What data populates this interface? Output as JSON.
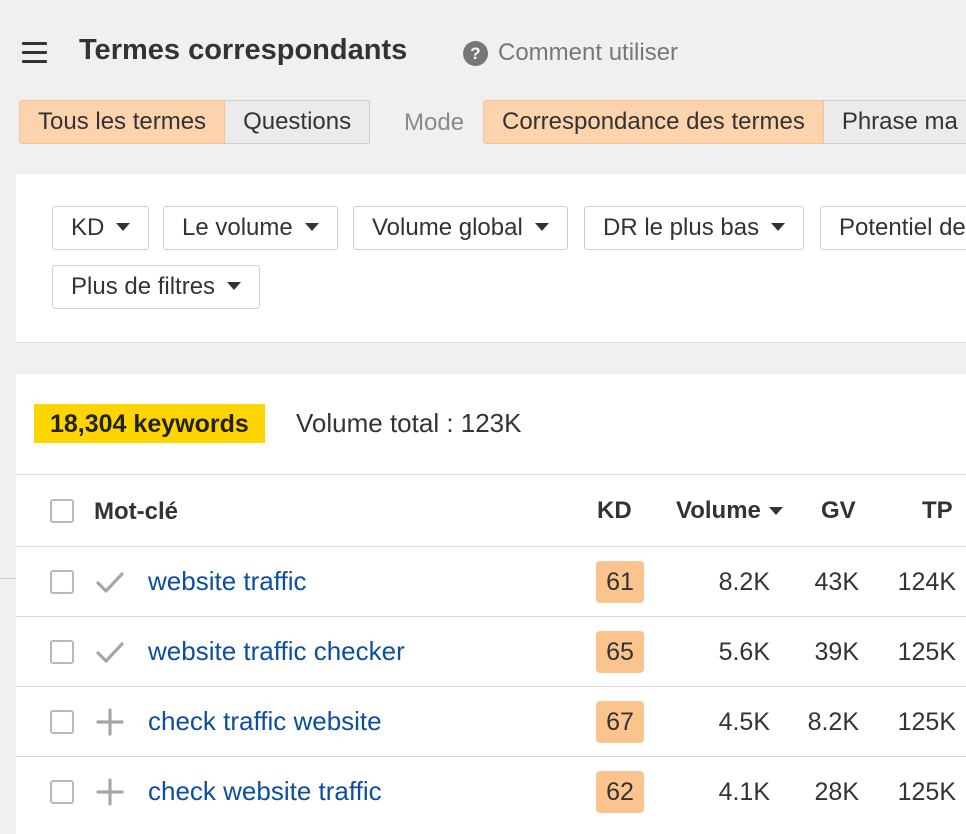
{
  "header": {
    "title": "Termes correspondants",
    "help_icon": "?",
    "help_label": "Comment utiliser"
  },
  "tabs": [
    {
      "label": "Tous les termes",
      "active": true
    },
    {
      "label": "Questions",
      "active": false
    }
  ],
  "mode": {
    "label": "Mode",
    "options": [
      {
        "label": "Correspondance des termes",
        "active": true
      },
      {
        "label": "Phrase ma",
        "active": false
      }
    ]
  },
  "filters": {
    "items": [
      "KD",
      "Le volume",
      "Volume global",
      "DR le plus bas",
      "Potentiel de"
    ],
    "more": "Plus de filtres"
  },
  "results": {
    "count_label": "18,304 keywords",
    "total_label": "Volume total : 123K"
  },
  "table": {
    "headers": {
      "keyword": "Mot-clé",
      "kd": "KD",
      "volume": "Volume",
      "gv": "GV",
      "tp": "TP"
    },
    "rows": [
      {
        "keyword": "website traffic",
        "status": "check-icon",
        "kd": "61",
        "volume": "8.2K",
        "gv": "43K",
        "tp": "124K"
      },
      {
        "keyword": "website traffic checker",
        "status": "check-icon",
        "kd": "65",
        "volume": "5.6K",
        "gv": "39K",
        "tp": "125K"
      },
      {
        "keyword": "check traffic website",
        "status": "plus-icon",
        "kd": "67",
        "volume": "4.5K",
        "gv": "8.2K",
        "tp": "125K"
      },
      {
        "keyword": "check website traffic",
        "status": "plus-icon",
        "kd": "62",
        "volume": "4.1K",
        "gv": "28K",
        "tp": "125K"
      }
    ]
  },
  "colors": {
    "active_tab": "#fdd3ae",
    "kd_badge": "#fbc48f",
    "keyword_count_highlight": "#ffd500",
    "link": "#0b4ea2"
  }
}
